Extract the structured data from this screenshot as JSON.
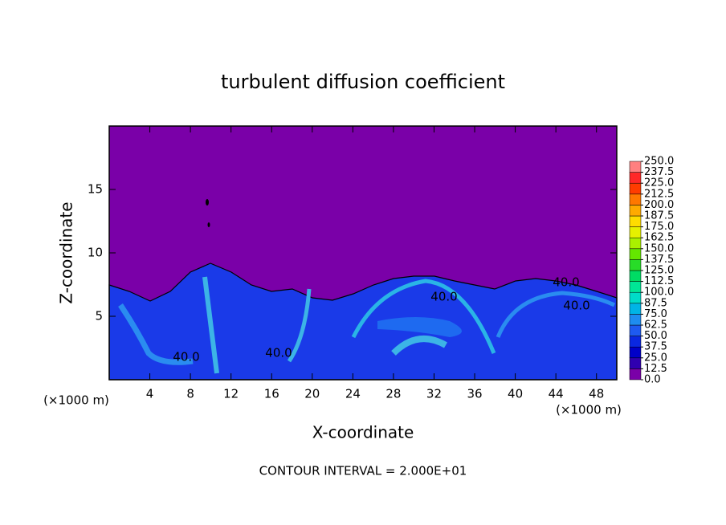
{
  "chart_data": {
    "type": "contour",
    "title": "turbulent diffusion coefficient",
    "x_label": "X-coordinate",
    "y_label": "Z-coordinate",
    "x_unit_left": "(×1000 m)",
    "x_unit_right": "(×1000 m)",
    "footer": "CONTOUR INTERVAL = 2.000E+01",
    "xlim": [
      0,
      50
    ],
    "ylim": [
      0,
      20
    ],
    "xticks": [
      4,
      8,
      12,
      16,
      20,
      24,
      28,
      32,
      36,
      40,
      44,
      48
    ],
    "yticks": [
      5,
      10,
      15
    ],
    "contour_labels": [
      "40.0",
      "40.0",
      "40.0",
      "40.0",
      "40.0"
    ],
    "colorbar": {
      "ticks": [
        {
          "value": 0,
          "label": "0.0"
        },
        12.5,
        {
          "value": 25,
          "label": "25.0"
        },
        37.5,
        {
          "value": 50,
          "label": "50.0"
        },
        62.5,
        {
          "value": 75,
          "label": "75.0"
        },
        87.5,
        {
          "value": 100,
          "label": "100.0"
        },
        112.5,
        {
          "value": 125,
          "label": "125.0"
        },
        137.5,
        {
          "value": 150,
          "label": "150.0"
        },
        162.5,
        {
          "value": 175,
          "label": "175.0"
        },
        187.5,
        {
          "value": 200,
          "label": "200.0"
        },
        212.5,
        {
          "value": 225,
          "label": "225.0"
        },
        237.5,
        {
          "value": 250,
          "label": "250.0"
        }
      ],
      "colors": [
        "#7a00a8",
        "#3000b0",
        "#0000c8",
        "#0a28e0",
        "#1e5af0",
        "#1e8cf0",
        "#00b4e6",
        "#00dcc8",
        "#00e696",
        "#00dc64",
        "#28dc28",
        "#64e600",
        "#aaf000",
        "#e6f000",
        "#ffdc00",
        "#ffaa00",
        "#ff7800",
        "#ff3c00",
        "#ff2828",
        "#ff8080"
      ]
    }
  }
}
